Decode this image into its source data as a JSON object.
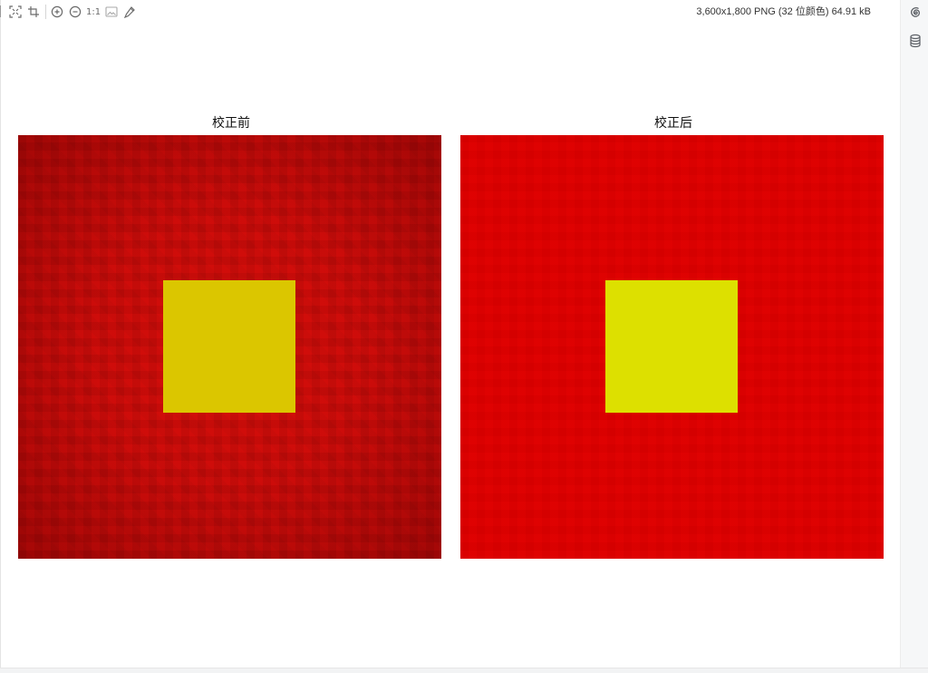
{
  "toolbar": {
    "icons": [
      "fit-screen-icon",
      "crop-icon",
      "zoom-in-icon",
      "zoom-out-icon",
      "image-icon",
      "eyedropper-icon"
    ],
    "actual_size_label": "1:1",
    "file_info": "3,600x1,800 PNG (32 位颜色) 64.91 kB"
  },
  "rail": {
    "icons": [
      "swirl-icon",
      "database-icon"
    ]
  },
  "image": {
    "left_panel_title": "校正前",
    "right_panel_title": "校正后",
    "colors": {
      "before_background": "#c40808",
      "before_square": "#dbc600",
      "after_background": "#dd0000",
      "after_square": "#dde000"
    }
  }
}
